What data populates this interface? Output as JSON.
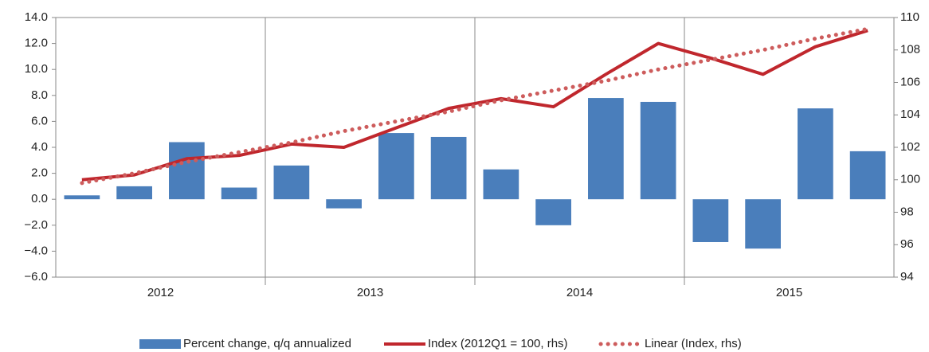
{
  "chart_data": {
    "type": "bar",
    "categories": [
      null,
      null,
      null,
      null,
      null,
      null,
      null,
      null,
      null,
      null,
      null,
      null,
      null,
      null,
      null,
      null
    ],
    "groups": [
      "2012",
      "2013",
      "2014",
      "2015"
    ],
    "series": [
      {
        "name": "Percent change, q/q annualized",
        "type": "bar",
        "color": "#4a7ebb",
        "values": [
          0.3,
          1.0,
          4.4,
          0.9,
          2.6,
          -0.7,
          5.1,
          4.8,
          2.3,
          -2.0,
          7.8,
          7.5,
          -3.3,
          -3.8,
          7.0,
          3.7
        ]
      },
      {
        "name": "Index (2012Q1 = 100, rhs)",
        "type": "line",
        "axis": "y2",
        "color": "#c0272d",
        "style": "solid",
        "values": [
          100.0,
          100.3,
          101.3,
          101.5,
          102.2,
          102.0,
          103.2,
          104.4,
          105.0,
          104.5,
          106.5,
          108.4,
          107.5,
          106.5,
          108.2,
          109.2
        ]
      },
      {
        "name": "Linear (Index, rhs)",
        "type": "line",
        "axis": "y2",
        "color": "#cd5c5c",
        "style": "dotted",
        "values": [
          99.8,
          100.4,
          101.1,
          101.7,
          102.3,
          103.0,
          103.6,
          104.2,
          104.9,
          105.5,
          106.1,
          106.8,
          107.4,
          108.0,
          108.7,
          109.3
        ]
      }
    ],
    "ylim": [
      -6,
      14
    ],
    "yticks": [
      {
        "value": 14,
        "label": "14.0"
      },
      {
        "value": 12,
        "label": "12.0"
      },
      {
        "value": 10,
        "label": "10.0"
      },
      {
        "value": 8,
        "label": "8.0"
      },
      {
        "value": 6,
        "label": "6.0"
      },
      {
        "value": 4,
        "label": "4.0"
      },
      {
        "value": 2,
        "label": "2.0"
      },
      {
        "value": 0,
        "label": "0.0"
      },
      {
        "value": -2,
        "label": "−2.0"
      },
      {
        "value": -4,
        "label": "−4.0"
      },
      {
        "value": -6,
        "label": "−6.0"
      }
    ],
    "y2lim": [
      94,
      110
    ],
    "y2ticks": [
      110,
      108,
      106,
      104,
      102,
      100,
      98,
      96,
      94
    ],
    "legend": "bottom"
  }
}
